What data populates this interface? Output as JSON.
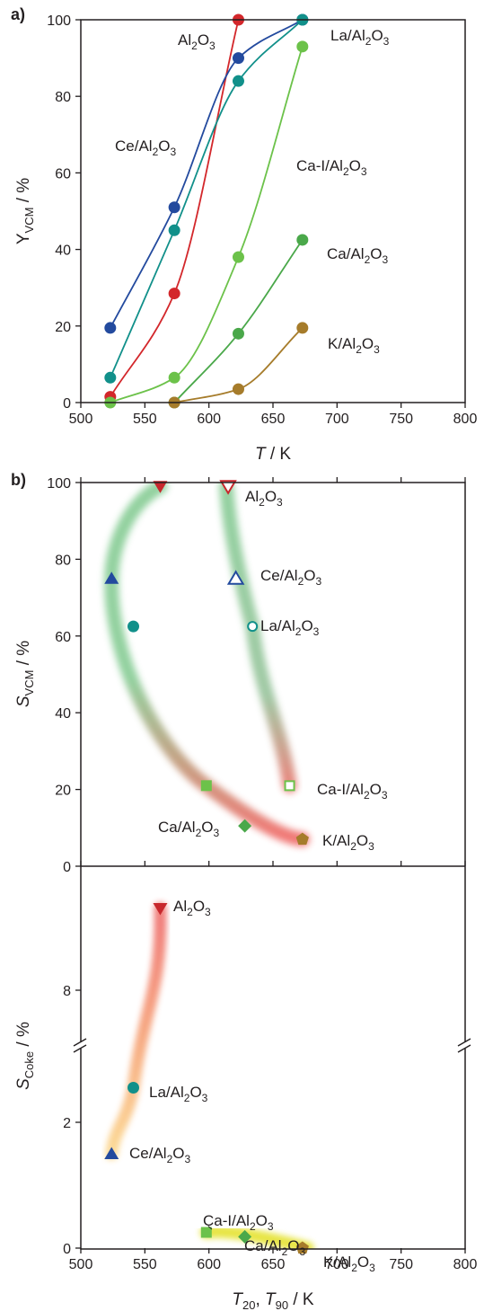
{
  "chart_data": [
    {
      "panel_label": "a)",
      "type": "line",
      "xlabel": {
        "var": "T",
        "unit": " / K"
      },
      "ylabel": {
        "base": "Y",
        "sub": "VCM",
        "unit": " / %"
      },
      "xlim": [
        500,
        800
      ],
      "ylim": [
        0,
        100
      ],
      "xticks": [
        500,
        550,
        600,
        650,
        700,
        750,
        800
      ],
      "yticks": [
        0,
        20,
        40,
        60,
        80,
        100
      ],
      "series": [
        {
          "label": [
            "Al",
            "2",
            "O",
            "3"
          ],
          "color": "#d3272b",
          "x": [
            523,
            573,
            623
          ],
          "y": [
            1.5,
            28.5,
            100
          ]
        },
        {
          "label": [
            "La/Al",
            "2",
            "O",
            "3"
          ],
          "color": "#234a9e",
          "x": [
            523,
            573,
            623,
            673
          ],
          "y": [
            19.5,
            51,
            90,
            100
          ]
        },
        {
          "label": [
            "Ce/Al",
            "2",
            "O",
            "3"
          ],
          "color": "#11908a",
          "x": [
            523,
            573,
            623,
            673
          ],
          "y": [
            6.5,
            45,
            84,
            100
          ]
        },
        {
          "label": [
            "Ca-I/Al",
            "2",
            "O",
            "3"
          ],
          "color": "#6cc24a",
          "x": [
            523,
            573,
            623,
            673
          ],
          "y": [
            0,
            6.5,
            38,
            93
          ]
        },
        {
          "label": [
            "Ca/Al",
            "2",
            "O",
            "3"
          ],
          "color": "#4aa84a",
          "x": [
            573,
            623,
            673
          ],
          "y": [
            0,
            18,
            42.5
          ]
        },
        {
          "label": [
            "K/Al",
            "2",
            "O",
            "3"
          ],
          "color": "#a67c2b",
          "x": [
            573,
            623,
            673
          ],
          "y": [
            0,
            3.5,
            19.5
          ]
        }
      ]
    },
    {
      "panel_label": "b)",
      "type": "scatter",
      "xlabel": {
        "var1": "T",
        "sub1": "20",
        "sep": ", ",
        "var2": "T",
        "sub2": "90",
        "unit": " / K"
      },
      "xlim": [
        500,
        800
      ],
      "xticks": [
        500,
        550,
        600,
        650,
        700,
        750,
        800
      ],
      "top": {
        "ylabel": {
          "base": "S",
          "sub": "VCM",
          "unit": " / %"
        },
        "ylim": [
          0,
          100
        ],
        "yticks": [
          0,
          20,
          40,
          60,
          80,
          100
        ],
        "points": [
          {
            "label": [
              "Al",
              "2",
              "O",
              "3"
            ],
            "x": 562,
            "y": 99,
            "marker": "triangle-down",
            "filled": true,
            "color": "#c8282d"
          },
          {
            "label": [
              "Al",
              "2",
              "O",
              "3"
            ],
            "x": 615,
            "y": 99,
            "marker": "triangle-down",
            "filled": false,
            "color": "#c8282d"
          },
          {
            "label": [
              "Ce/Al",
              "2",
              "O",
              "3"
            ],
            "x": 524,
            "y": 75,
            "marker": "triangle",
            "filled": true,
            "color": "#234a9e"
          },
          {
            "label": [
              "Ce/Al",
              "2",
              "O",
              "3"
            ],
            "x": 621,
            "y": 75,
            "marker": "triangle",
            "filled": false,
            "color": "#234a9e"
          },
          {
            "label": [
              "La/Al",
              "2",
              "O",
              "3"
            ],
            "x": 541,
            "y": 62.5,
            "marker": "circle",
            "filled": true,
            "color": "#11908a"
          },
          {
            "label": [
              "La/Al",
              "2",
              "O",
              "3"
            ],
            "x": 634,
            "y": 62.5,
            "marker": "circle",
            "filled": false,
            "color": "#11908a"
          },
          {
            "label": [
              "Ca-I/Al",
              "2",
              "O",
              "3"
            ],
            "x": 598,
            "y": 21,
            "marker": "square",
            "filled": true,
            "color": "#6cc24a"
          },
          {
            "label": [
              "Ca-I/Al",
              "2",
              "O",
              "3"
            ],
            "x": 663,
            "y": 21,
            "marker": "square",
            "filled": false,
            "color": "#6cc24a"
          },
          {
            "label": [
              "Ca/Al",
              "2",
              "O",
              "3"
            ],
            "x": 628,
            "y": 10.5,
            "marker": "diamond",
            "filled": true,
            "color": "#4aa84a"
          },
          {
            "label": [
              "K/Al",
              "2",
              "O",
              "3"
            ],
            "x": 673,
            "y": 7,
            "marker": "pentagon",
            "filled": true,
            "color": "#a67c2b"
          }
        ]
      },
      "bottom": {
        "ylabel": {
          "base": "S",
          "sub": "Coke",
          "unit": " / %"
        },
        "ylim_lower": [
          0,
          3.5
        ],
        "ylim_upper": [
          6,
          10
        ],
        "yticks": [
          0,
          2,
          8
        ],
        "points": [
          {
            "label": [
              "Al",
              "2",
              "O",
              "3"
            ],
            "x": 562,
            "y": 9.3,
            "marker": "triangle-down",
            "filled": true,
            "color": "#c8282d"
          },
          {
            "label": [
              "La/Al",
              "2",
              "O",
              "3"
            ],
            "x": 541,
            "y": 2.55,
            "marker": "circle",
            "filled": true,
            "color": "#11908a"
          },
          {
            "label": [
              "Ce/Al",
              "2",
              "O",
              "3"
            ],
            "x": 524,
            "y": 1.5,
            "marker": "triangle",
            "filled": true,
            "color": "#234a9e"
          },
          {
            "label": [
              "Ca-I/Al",
              "2",
              "O",
              "3"
            ],
            "x": 598,
            "y": 0.25,
            "marker": "square",
            "filled": true,
            "color": "#6cc24a"
          },
          {
            "label": [
              "Ca/Al",
              "2",
              "O",
              "3"
            ],
            "x": 628,
            "y": 0.18,
            "marker": "diamond",
            "filled": true,
            "color": "#4aa84a"
          },
          {
            "label": [
              "K/Al",
              "2",
              "O",
              "3"
            ],
            "x": 673,
            "y": 0.0,
            "marker": "pentagon",
            "filled": true,
            "color": "#a67c2b"
          }
        ]
      }
    }
  ]
}
